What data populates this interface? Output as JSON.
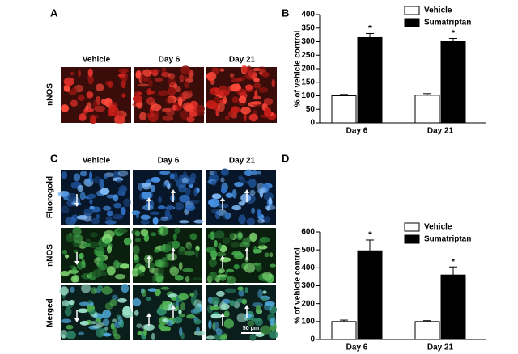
{
  "panels": {
    "a": "A",
    "b": "B",
    "c": "C",
    "d": "D"
  },
  "panel_a": {
    "columns": [
      "Vehicle",
      "Day 6",
      "Day 21"
    ],
    "rows": [
      "nNOS"
    ]
  },
  "panel_c": {
    "columns": [
      "Vehicle",
      "Day 6",
      "Day 21"
    ],
    "rows": [
      "Fluorogold",
      "nNOS",
      "Merged"
    ],
    "scale_bar": "50 μm"
  },
  "chart_data": [
    {
      "type": "bar",
      "ylabel": "% of vehicle control",
      "categories": [
        "Day 6",
        "Day 21"
      ],
      "series": [
        {
          "name": "Vehicle",
          "color": "#ffffff",
          "values": [
            100,
            102
          ],
          "errors": [
            5,
            6
          ]
        },
        {
          "name": "Sumatriptan",
          "color": "#000000",
          "values": [
            315,
            300
          ],
          "errors": [
            15,
            12
          ],
          "markers": [
            "*",
            "*"
          ]
        }
      ],
      "ylim": [
        0,
        400
      ],
      "yticks": [
        0,
        50,
        100,
        150,
        200,
        250,
        300,
        350,
        400
      ]
    },
    {
      "type": "bar",
      "ylabel": "% of vehicle control",
      "categories": [
        "Day 6",
        "Day 21"
      ],
      "series": [
        {
          "name": "Vehicle",
          "color": "#ffffff",
          "values": [
            100,
            100
          ],
          "errors": [
            8,
            5
          ]
        },
        {
          "name": "Sumatriptan",
          "color": "#000000",
          "values": [
            495,
            360
          ],
          "errors": [
            60,
            45
          ],
          "markers": [
            "*",
            "*"
          ]
        }
      ],
      "ylim": [
        0,
        600
      ],
      "yticks": [
        0,
        100,
        200,
        300,
        400,
        500,
        600
      ]
    }
  ]
}
